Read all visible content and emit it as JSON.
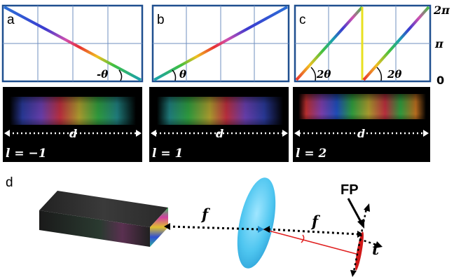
{
  "panels": [
    {
      "label": "a",
      "angle_label": "-θ",
      "intensity_label": "l = −1",
      "distance_label": "d"
    },
    {
      "label": "b",
      "angle_label": "θ",
      "intensity_label": "l = 1",
      "distance_label": "d"
    },
    {
      "label": "c",
      "angle_label": "2θ",
      "angle_label_2": "2θ",
      "intensity_label": "l = 2",
      "distance_label": "d"
    }
  ],
  "phase_axis": {
    "top": "2π",
    "mid": "π",
    "bottom": "0"
  },
  "setup": {
    "label": "d",
    "focal_label_1": "f",
    "focal_label_2": "f",
    "plane_label": "FP",
    "tilt_label": "t"
  }
}
